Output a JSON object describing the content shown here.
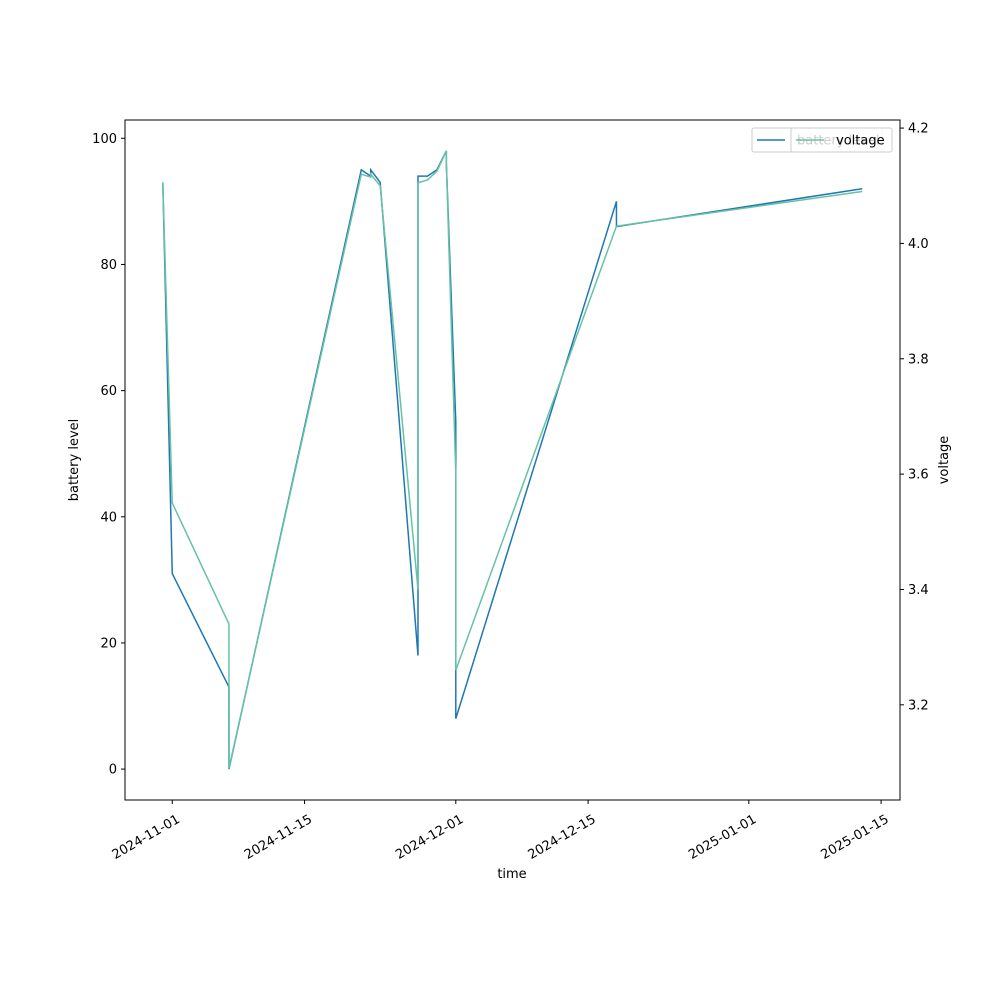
{
  "chart_data": {
    "type": "line",
    "xlabel": "time",
    "ylabel": "battery level",
    "y2label": "voltage",
    "x": [
      "2024-10-31",
      "2024-11-01",
      "2024-11-07",
      "2024-11-07",
      "2024-11-21",
      "2024-11-22",
      "2024-11-22",
      "2024-11-23",
      "2024-11-27",
      "2024-11-27",
      "2024-11-28",
      "2024-11-29",
      "2024-11-29",
      "2024-11-30",
      "2024-11-30",
      "2024-12-01",
      "2024-12-01",
      "2024-12-18",
      "2024-12-18",
      "2025-01-13"
    ],
    "series": [
      {
        "name": "battery level",
        "color": "#1f77b4",
        "axis": "y",
        "values": [
          93,
          31,
          13,
          0,
          95,
          94,
          95,
          93,
          18,
          94,
          94,
          95,
          95,
          98,
          96,
          55,
          8,
          90,
          86,
          92
        ]
      },
      {
        "name": "voltage",
        "color": "#66c2a5",
        "axis": "y2",
        "values": [
          4.105,
          3.55,
          3.34,
          3.09,
          4.12,
          4.115,
          4.12,
          4.1,
          3.4,
          4.105,
          4.11,
          4.125,
          4.125,
          4.16,
          4.14,
          3.6,
          3.26,
          4.03,
          4.03,
          4.09
        ]
      }
    ],
    "xlim": [
      "2024-10-27",
      "2025-01-17"
    ],
    "xticks": [
      "2024-11-01",
      "2024-11-15",
      "2024-12-01",
      "2024-12-15",
      "2025-01-01",
      "2025-01-15"
    ],
    "ylim": [
      -4.9,
      102.9
    ],
    "yticks": [
      0,
      20,
      40,
      60,
      80,
      100
    ],
    "y2lim": [
      3.035,
      4.214
    ],
    "y2ticks": [
      3.2,
      3.4,
      3.6,
      3.8,
      {
        "value": 4,
        "label": "4.0"
      },
      4.2
    ],
    "legend": "upper right",
    "grid": false
  }
}
